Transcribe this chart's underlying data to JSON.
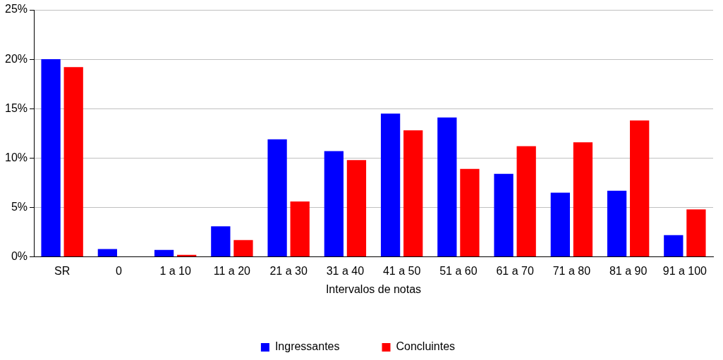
{
  "chart_data": {
    "type": "bar",
    "xlabel": "Intervalos de notas",
    "categories": [
      "SR",
      "0",
      "1 a 10",
      "11 a 20",
      "21 a 30",
      "31 a 40",
      "41 a 50",
      "51 a 60",
      "61 a 70",
      "71 a 80",
      "81 a 90",
      "91 a 100"
    ],
    "series": [
      {
        "name": "Ingressantes",
        "color": "#0000ff",
        "values": [
          20.0,
          0.8,
          0.7,
          3.1,
          11.9,
          10.7,
          14.5,
          14.1,
          8.4,
          6.5,
          6.7,
          2.2
        ]
      },
      {
        "name": "Concluintes",
        "color": "#ff0000",
        "values": [
          19.2,
          0,
          0.2,
          1.7,
          5.6,
          9.8,
          12.8,
          8.9,
          11.2,
          11.6,
          13.8,
          4.8
        ]
      }
    ],
    "ylim": [
      0,
      25
    ],
    "yticks": [
      {
        "value": 0,
        "label": "0%"
      },
      {
        "value": 5,
        "label": "5%"
      },
      {
        "value": 10,
        "label": "10%"
      },
      {
        "value": 15,
        "label": "15%"
      },
      {
        "value": 20,
        "label": "20%"
      },
      {
        "value": 25,
        "label": "25%"
      }
    ],
    "grid": "y",
    "legend": "bottom"
  }
}
